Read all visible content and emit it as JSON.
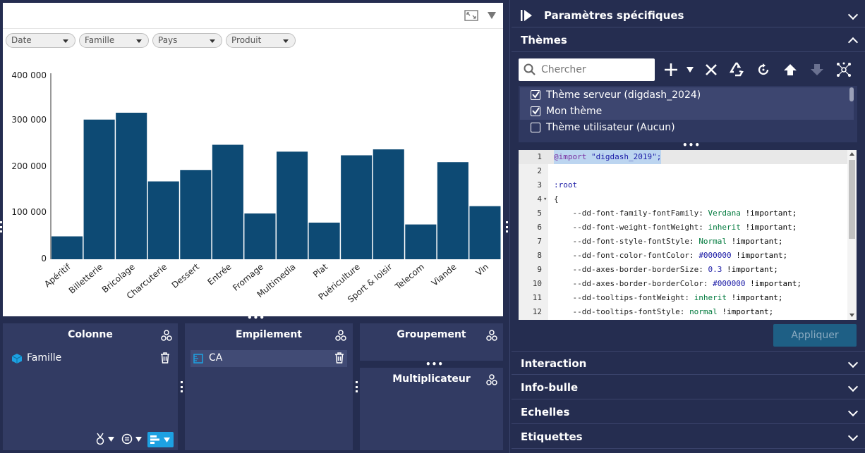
{
  "chart": {
    "filters": [
      "Date",
      "Famille",
      "Pays",
      "Produit"
    ],
    "y_ticks": [
      "400 000",
      "300 000",
      "200 000",
      "100 000",
      "0"
    ]
  },
  "chart_data": {
    "type": "bar",
    "categories": [
      "Apéritif",
      "Billetterie",
      "Bricolage",
      "Charcuterie",
      "Dessert",
      "Entrée",
      "Fromage",
      "Multimedia",
      "Plat",
      "Puériculture",
      "Sport & loisir",
      "Telecom",
      "Viande",
      "Vin"
    ],
    "values": [
      50000,
      305000,
      320000,
      170000,
      195000,
      250000,
      100000,
      235000,
      80000,
      227000,
      240000,
      76000,
      212000,
      116000
    ],
    "ylim": [
      0,
      400000
    ],
    "grid": false,
    "color": "#0d4a74"
  },
  "boxes": {
    "colonne": {
      "title": "Colonne",
      "item": "Famille"
    },
    "empilement": {
      "title": "Empilement",
      "item": "CA"
    },
    "groupement": {
      "title": "Groupement"
    },
    "multiplicateur": {
      "title": "Multiplicateur"
    }
  },
  "right_panel": {
    "specific_params": "Paramètres spécifiques",
    "themes": "Thèmes",
    "search_placeholder": "Chercher",
    "theme_list": [
      {
        "label": "Thème serveur (digdash_2024)",
        "checked": true
      },
      {
        "label": "Mon thème",
        "checked": true
      },
      {
        "label": "Thème utilisateur (Aucun)",
        "checked": false
      }
    ],
    "apply": "Appliquer",
    "sections": [
      "Interaction",
      "Info-bulle",
      "Echelles",
      "Etiquettes"
    ]
  },
  "code": {
    "line_numbers": [
      "1",
      "2",
      "3",
      "4",
      "5",
      "6",
      "7",
      "8",
      "9",
      "10",
      "11",
      "12"
    ],
    "fold_marker": "▾",
    "lines": [
      {
        "prefix": "@import",
        "rest": " \"digdash_2019\";"
      },
      {
        "prefix": "",
        "rest": ""
      },
      {
        "prefix": ":root",
        "rest": ""
      },
      {
        "prefix": "{",
        "rest": ""
      },
      {
        "prefix": "    --dd-font-family-fontFamily: ",
        "value": "Verdana",
        "rest": " !important;"
      },
      {
        "prefix": "    --dd-font-weight-fontWeight: ",
        "value": "inherit",
        "rest": " !important;"
      },
      {
        "prefix": "    --dd-font-style-fontStyle: ",
        "value": "Normal",
        "rest": " !important;"
      },
      {
        "prefix": "    --dd-font-color-fontColor: ",
        "value": "#000000",
        "rest": " !important;"
      },
      {
        "prefix": "    --dd-axes-border-borderSize: ",
        "value": "0.3",
        "rest": " !important;"
      },
      {
        "prefix": "    --dd-axes-border-borderColor: ",
        "value": "#000000",
        "rest": " !important;"
      },
      {
        "prefix": "    --dd-tooltips-fontWeight: ",
        "value": "inherit",
        "rest": " !important;"
      },
      {
        "prefix": "    --dd-tooltips-fontStyle: ",
        "value": "normal",
        "rest": " !important;"
      }
    ]
  },
  "colors": {
    "background": "#252d50",
    "box": "#323b63",
    "bar": "#0d4a74",
    "accent": "#1da1e2",
    "apply": "#1e5f85"
  }
}
